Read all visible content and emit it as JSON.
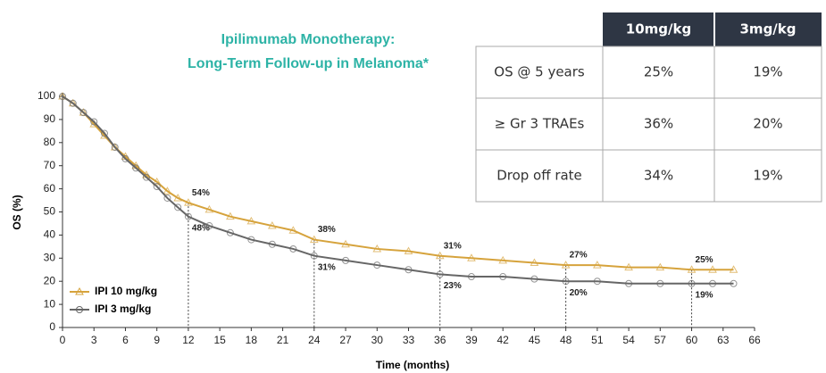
{
  "chart_data": {
    "type": "line",
    "title": [
      "Ipilimumab Monotherapy:",
      "Long-Term Follow-up in Melanoma*"
    ],
    "xlabel": "Time (months)",
    "ylabel": "OS (%)",
    "x": [
      0,
      1,
      2,
      3,
      4,
      5,
      6,
      7,
      8,
      9,
      10,
      11,
      12,
      14,
      16,
      18,
      20,
      22,
      24,
      27,
      30,
      33,
      36,
      39,
      42,
      45,
      48,
      51,
      54,
      57,
      60,
      62,
      64
    ],
    "series": [
      {
        "name": "IPI 10 mg/kg",
        "color": "#d6a33c",
        "marker": "triangle",
        "values": [
          100,
          97,
          93,
          88,
          83,
          78,
          74,
          70,
          66,
          63,
          59,
          56,
          54,
          51,
          48,
          46,
          44,
          42,
          38,
          36,
          34,
          33,
          31,
          30,
          29,
          28,
          27,
          27,
          26,
          26,
          25,
          25,
          25
        ]
      },
      {
        "name": "IPI 3 mg/kg",
        "color": "#666666",
        "marker": "circle",
        "values": [
          100,
          97,
          93,
          89,
          84,
          78,
          73,
          69,
          65,
          61,
          56,
          52,
          48,
          44,
          41,
          38,
          36,
          34,
          31,
          29,
          27,
          25,
          23,
          22,
          22,
          21,
          20,
          20,
          19,
          19,
          19,
          19,
          19
        ]
      }
    ],
    "annotations": [
      {
        "x": 12,
        "values": [
          54,
          48
        ],
        "labels": [
          "54%",
          "48%"
        ]
      },
      {
        "x": 24,
        "values": [
          38,
          31
        ],
        "labels": [
          "38%",
          "31%"
        ]
      },
      {
        "x": 36,
        "values": [
          31,
          23
        ],
        "labels": [
          "31%",
          "23%"
        ]
      },
      {
        "x": 48,
        "values": [
          27,
          20
        ],
        "labels": [
          "27%",
          "20%"
        ]
      },
      {
        "x": 60,
        "values": [
          25,
          19
        ],
        "labels": [
          "25%",
          "19%"
        ]
      }
    ],
    "xlim": [
      0,
      66
    ],
    "xticks": [
      0,
      3,
      6,
      9,
      12,
      15,
      18,
      21,
      24,
      27,
      30,
      33,
      36,
      39,
      42,
      45,
      48,
      51,
      54,
      57,
      60,
      63,
      66
    ],
    "ylim": [
      0,
      100
    ],
    "yticks": [
      0,
      10,
      20,
      30,
      40,
      50,
      60,
      70,
      80,
      90,
      100
    ],
    "legend": "lower left"
  },
  "table": {
    "columns": [
      "10mg/kg",
      "3mg/kg"
    ],
    "rows": [
      {
        "label": "OS @ 5 years",
        "values": [
          "25%",
          "19%"
        ]
      },
      {
        "label": "≥ Gr 3 TRAEs",
        "values": [
          "36%",
          "20%"
        ]
      },
      {
        "label": "Drop off rate",
        "values": [
          "34%",
          "19%"
        ]
      }
    ]
  }
}
